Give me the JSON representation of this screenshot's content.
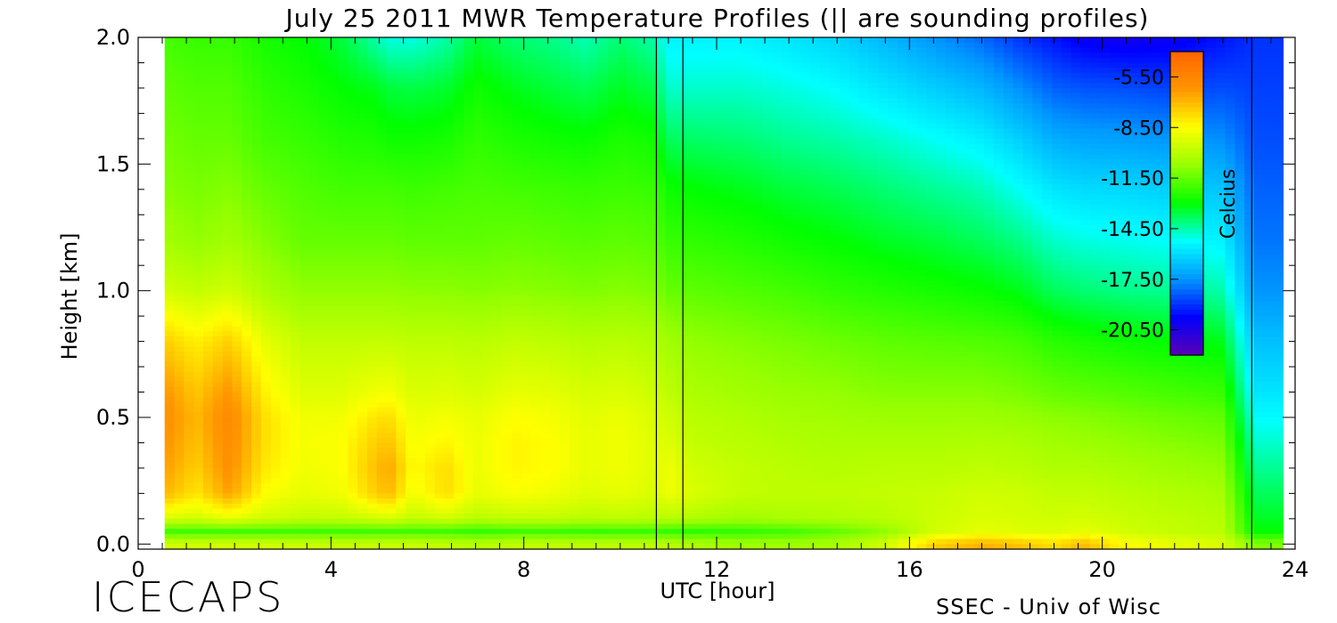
{
  "page": {
    "logo": "ICECAPS",
    "credit": "SSEC - Univ of Wisc"
  },
  "chart_data": {
    "type": "heatmap",
    "title": "July 25 2011 MWR Temperature Profiles (|| are sounding profiles)",
    "xlabel": "UTC [hour]",
    "ylabel": "Height [km]",
    "xlim": [
      0,
      24
    ],
    "ylim": [
      -0.02,
      2.0
    ],
    "x_ticks": [
      0,
      4,
      8,
      12,
      16,
      20,
      24
    ],
    "y_ticks": [
      0.0,
      0.5,
      1.0,
      1.5,
      2.0
    ],
    "x_tick_labels": [
      "0",
      "4",
      "8",
      "12",
      "16",
      "20",
      "24"
    ],
    "y_tick_labels": [
      "0.0",
      "0.5",
      "1.0",
      "1.5",
      "2.0"
    ],
    "data_x_range": [
      0.55,
      23.75
    ],
    "grid": false,
    "sounding_profiles_utc": [
      10.75,
      11.3,
      23.1
    ],
    "colorbar": {
      "label": "Celcius",
      "range": [
        -22.0,
        -4.0
      ],
      "tick_values": [
        -5.5,
        -8.5,
        -11.5,
        -14.5,
        -17.5,
        -20.5
      ],
      "tick_labels": [
        "-5.50",
        "-8.50",
        "-11.50",
        "-14.50",
        "-17.50",
        "-20.50"
      ],
      "colors": [
        "#5a00b4",
        "#0000ff",
        "#0096ff",
        "#00ffff",
        "#00ff00",
        "#96ff00",
        "#ffff00",
        "#ff9600",
        "#ff6400"
      ],
      "placement": "top-right, inside plot"
    },
    "heights_km": [
      0.0,
      0.05,
      0.1,
      0.2,
      0.3,
      0.4,
      0.5,
      0.6,
      0.8,
      1.0,
      1.2,
      1.4,
      1.6,
      1.8,
      2.0
    ],
    "profiles": [
      {
        "utc": 0.6,
        "temps": [
          -9.5,
          -12.0,
          -9.3,
          -7.0,
          -6.5,
          -6.2,
          -6.0,
          -6.3,
          -7.5,
          -9.5,
          -10.5,
          -11.0,
          -11.3,
          -11.6,
          -12.0
        ]
      },
      {
        "utc": 1.2,
        "temps": [
          -9.5,
          -12.0,
          -9.5,
          -8.0,
          -7.5,
          -7.2,
          -7.0,
          -7.3,
          -8.2,
          -9.8,
          -10.8,
          -11.2,
          -11.5,
          -11.8,
          -12.2
        ]
      },
      {
        "utc": 1.9,
        "temps": [
          -9.5,
          -12.0,
          -9.0,
          -6.5,
          -6.0,
          -5.8,
          -5.7,
          -6.2,
          -7.5,
          -9.5,
          -10.5,
          -11.0,
          -11.5,
          -11.8,
          -12.2
        ]
      },
      {
        "utc": 2.6,
        "temps": [
          -9.5,
          -12.0,
          -9.5,
          -8.5,
          -8.0,
          -7.8,
          -7.8,
          -8.2,
          -9.0,
          -10.3,
          -11.0,
          -11.5,
          -12.0,
          -12.3,
          -12.7
        ]
      },
      {
        "utc": 3.4,
        "temps": [
          -9.6,
          -12.0,
          -9.8,
          -9.0,
          -8.8,
          -8.7,
          -8.8,
          -9.2,
          -9.8,
          -10.8,
          -11.5,
          -11.8,
          -12.2,
          -12.6,
          -13.0
        ]
      },
      {
        "utc": 4.2,
        "temps": [
          -9.7,
          -12.0,
          -9.8,
          -8.8,
          -8.6,
          -8.6,
          -8.8,
          -9.2,
          -9.8,
          -10.8,
          -11.5,
          -12.0,
          -12.5,
          -13.0,
          -13.5
        ]
      },
      {
        "utc": 4.9,
        "temps": [
          -9.7,
          -12.0,
          -9.5,
          -7.5,
          -7.2,
          -7.5,
          -8.0,
          -8.8,
          -9.8,
          -10.8,
          -11.5,
          -12.0,
          -12.6,
          -13.2,
          -14.5
        ]
      },
      {
        "utc": 5.2,
        "temps": [
          -9.7,
          -12.0,
          -9.3,
          -7.0,
          -6.6,
          -7.2,
          -7.8,
          -8.7,
          -9.8,
          -10.8,
          -11.5,
          -12.0,
          -12.8,
          -13.5,
          -15.0
        ]
      },
      {
        "utc": 5.7,
        "temps": [
          -9.7,
          -12.0,
          -9.8,
          -8.8,
          -8.5,
          -8.7,
          -8.9,
          -9.3,
          -9.9,
          -10.9,
          -11.6,
          -12.1,
          -12.8,
          -13.6,
          -15.0
        ]
      },
      {
        "utc": 6.4,
        "temps": [
          -9.8,
          -12.0,
          -9.5,
          -7.8,
          -7.8,
          -8.3,
          -8.7,
          -9.2,
          -9.9,
          -10.9,
          -11.6,
          -12.0,
          -12.7,
          -13.4,
          -14.5
        ]
      },
      {
        "utc": 7.0,
        "temps": [
          -10.0,
          -12.2,
          -10.0,
          -9.0,
          -8.9,
          -8.9,
          -9.0,
          -9.4,
          -10.0,
          -11.0,
          -11.6,
          -11.9,
          -12.3,
          -12.8,
          -13.5
        ]
      },
      {
        "utc": 7.8,
        "temps": [
          -9.8,
          -12.0,
          -9.8,
          -8.6,
          -8.3,
          -8.3,
          -8.5,
          -9.0,
          -9.8,
          -10.9,
          -11.5,
          -12.0,
          -12.6,
          -13.2,
          -14.0
        ]
      },
      {
        "utc": 8.6,
        "temps": [
          -9.8,
          -12.0,
          -9.8,
          -8.8,
          -8.5,
          -8.5,
          -8.7,
          -9.1,
          -9.9,
          -11.0,
          -11.6,
          -12.1,
          -12.8,
          -13.5,
          -14.2
        ]
      },
      {
        "utc": 9.3,
        "temps": [
          -9.9,
          -12.1,
          -10.0,
          -9.2,
          -9.0,
          -9.0,
          -9.1,
          -9.4,
          -10.1,
          -11.1,
          -11.7,
          -12.2,
          -12.9,
          -13.7,
          -14.6
        ]
      },
      {
        "utc": 10.0,
        "temps": [
          -9.9,
          -12.1,
          -9.9,
          -9.0,
          -8.8,
          -8.8,
          -8.9,
          -9.3,
          -10.0,
          -11.0,
          -11.6,
          -12.1,
          -12.6,
          -13.3,
          -14.0
        ]
      },
      {
        "utc": 10.7,
        "temps": [
          -9.9,
          -12.1,
          -10.0,
          -9.3,
          -9.2,
          -9.2,
          -9.3,
          -9.6,
          -10.2,
          -11.1,
          -11.7,
          -12.2,
          -12.8,
          -13.6,
          -14.5
        ]
      },
      {
        "utc": 11.0,
        "temps": [
          -10.0,
          -12.2,
          -10.0,
          -8.8,
          -8.8,
          -9.2,
          -9.5,
          -9.9,
          -10.5,
          -11.5,
          -12.2,
          -12.8,
          -13.8,
          -14.8,
          -15.5
        ]
      },
      {
        "utc": 11.5,
        "temps": [
          -10.2,
          -12.3,
          -10.2,
          -9.3,
          -9.5,
          -9.8,
          -10.0,
          -10.3,
          -10.8,
          -11.6,
          -12.3,
          -13.0,
          -13.9,
          -14.8,
          -15.5
        ]
      },
      {
        "utc": 12.5,
        "temps": [
          -10.5,
          -12.2,
          -10.5,
          -9.8,
          -9.8,
          -10.0,
          -10.2,
          -10.5,
          -11.0,
          -11.8,
          -12.5,
          -13.2,
          -14.0,
          -14.8,
          -15.5
        ]
      },
      {
        "utc": 13.5,
        "temps": [
          -10.5,
          -12.0,
          -10.3,
          -9.9,
          -10.0,
          -10.2,
          -10.4,
          -10.7,
          -11.2,
          -12.0,
          -12.8,
          -13.5,
          -14.3,
          -15.0,
          -15.8
        ]
      },
      {
        "utc": 14.5,
        "temps": [
          -10.3,
          -11.5,
          -10.2,
          -9.9,
          -10.1,
          -10.3,
          -10.5,
          -10.8,
          -11.4,
          -12.3,
          -13.0,
          -13.7,
          -14.5,
          -15.3,
          -16.2
        ]
      },
      {
        "utc": 15.5,
        "temps": [
          -9.5,
          -10.8,
          -10.0,
          -9.8,
          -10.0,
          -10.3,
          -10.6,
          -11.0,
          -11.6,
          -12.5,
          -13.3,
          -14.0,
          -14.8,
          -15.8,
          -16.8
        ]
      },
      {
        "utc": 16.5,
        "temps": [
          -7.5,
          -9.5,
          -9.6,
          -9.7,
          -10.0,
          -10.3,
          -10.6,
          -11.0,
          -11.7,
          -12.7,
          -13.5,
          -14.3,
          -15.2,
          -16.3,
          -17.5
        ]
      },
      {
        "utc": 17.5,
        "temps": [
          -6.8,
          -9.0,
          -9.3,
          -9.5,
          -9.9,
          -10.2,
          -10.6,
          -11.0,
          -11.8,
          -12.9,
          -13.8,
          -14.6,
          -15.6,
          -16.8,
          -18.2
        ]
      },
      {
        "utc": 18.3,
        "temps": [
          -7.2,
          -9.2,
          -9.4,
          -9.6,
          -10.0,
          -10.3,
          -10.7,
          -11.2,
          -12.0,
          -13.2,
          -14.2,
          -15.2,
          -16.3,
          -17.6,
          -19.0
        ]
      },
      {
        "utc": 19.0,
        "temps": [
          -7.8,
          -9.3,
          -9.5,
          -9.8,
          -10.2,
          -10.5,
          -10.9,
          -11.5,
          -12.4,
          -13.8,
          -14.8,
          -15.8,
          -17.0,
          -18.3,
          -19.5
        ]
      },
      {
        "utc": 19.6,
        "temps": [
          -7.0,
          -9.0,
          -9.4,
          -9.8,
          -10.2,
          -10.6,
          -11.0,
          -11.6,
          -12.6,
          -14.0,
          -15.0,
          -16.0,
          -17.2,
          -18.5,
          -20.0
        ]
      },
      {
        "utc": 20.5,
        "temps": [
          -8.5,
          -9.5,
          -9.7,
          -10.0,
          -10.4,
          -10.8,
          -11.2,
          -11.8,
          -12.8,
          -14.2,
          -15.1,
          -16.1,
          -17.3,
          -18.6,
          -20.2
        ]
      },
      {
        "utc": 21.5,
        "temps": [
          -9.0,
          -9.8,
          -9.9,
          -10.2,
          -10.6,
          -11.0,
          -11.4,
          -12.0,
          -13.0,
          -14.3,
          -15.3,
          -16.3,
          -17.5,
          -18.8,
          -20.0
        ]
      },
      {
        "utc": 22.5,
        "temps": [
          -9.3,
          -10.0,
          -10.1,
          -10.4,
          -10.8,
          -11.2,
          -11.6,
          -12.2,
          -13.2,
          -14.5,
          -15.5,
          -16.5,
          -17.6,
          -18.6,
          -19.5
        ]
      },
      {
        "utc": 23.2,
        "temps": [
          -11.0,
          -13.0,
          -13.3,
          -13.8,
          -14.3,
          -14.8,
          -15.3,
          -15.8,
          -16.6,
          -17.5,
          -18.0,
          -18.3,
          -18.6,
          -18.8,
          -19.0
        ]
      },
      {
        "utc": 23.75,
        "temps": [
          -11.0,
          -13.0,
          -13.3,
          -13.8,
          -14.3,
          -14.8,
          -15.3,
          -15.8,
          -16.6,
          -17.5,
          -18.0,
          -18.3,
          -18.6,
          -18.8,
          -19.0
        ]
      }
    ]
  }
}
